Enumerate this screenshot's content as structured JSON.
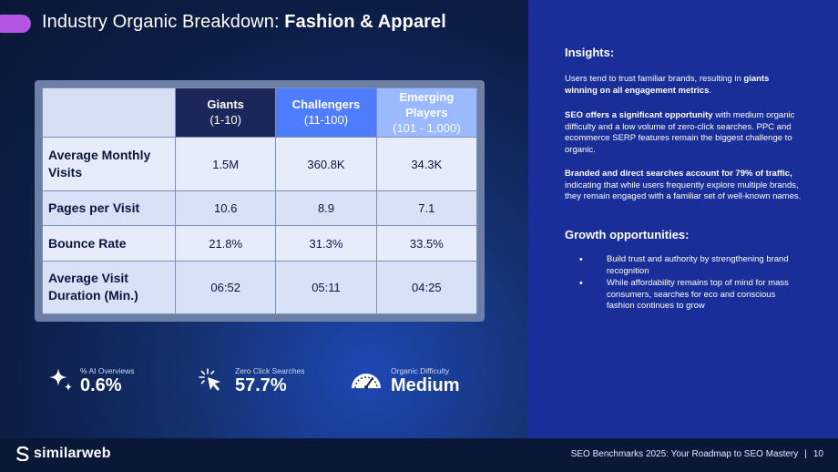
{
  "header": {
    "title_prefix": "Industry Organic Breakdown:",
    "title_bold": "Fashion & Apparel"
  },
  "table": {
    "columns": [
      {
        "name": "Giants",
        "range": "(1-10)"
      },
      {
        "name": "Challengers",
        "range": "(11-100)"
      },
      {
        "name": "Emerging Players",
        "range": "(101 - 1,000)"
      }
    ],
    "rows": [
      {
        "label": "Average Monthly Visits",
        "values": [
          "1.5M",
          "360.8K",
          "34.3K"
        ]
      },
      {
        "label": "Pages per Visit",
        "values": [
          "10.6",
          "8.9",
          "7.1"
        ]
      },
      {
        "label": "Bounce Rate",
        "values": [
          "21.8%",
          "31.3%",
          "33.5%"
        ]
      },
      {
        "label": "Average Visit Duration (Min.)",
        "values": [
          "06:52",
          "05:11",
          "04:25"
        ]
      }
    ]
  },
  "metrics": [
    {
      "label": "% AI Overviews",
      "value": "0.6%",
      "icon": "sparkle-icon"
    },
    {
      "label": "Zero Click Searches",
      "value": "57.7%",
      "icon": "cursor-click-icon"
    },
    {
      "label": "Organic Difficulty",
      "value": "Medium",
      "icon": "gauge-icon"
    }
  ],
  "insights": {
    "heading": "Insights:",
    "p1_plain": "Users tend to trust familiar brands, resulting in ",
    "p1_bold": "giants winning on all engagement metrics",
    "p1_end": ".",
    "p2_bold": "SEO offers a significant opportunity",
    "p2_plain": " with medium organic difficulty and a low volume of zero-click searches. PPC and ecommerce SERP features remain the biggest challenge to organic.",
    "p3_bold": "Branded and direct searches account for 79% of traffic,",
    "p3_plain": " indicating that while users frequently explore multiple brands, they remain engaged with a familiar set of well-known names."
  },
  "growth": {
    "heading": "Growth opportunities:",
    "items": [
      "Build trust and authority by strengthening brand recognition",
      "While affordability remains top of mind for mass consumers, searches for eco and conscious fashion continues to grow"
    ]
  },
  "footer": {
    "brand": "similarweb",
    "caption": "SEO Benchmarks 2025: Your Roadmap to SEO Mastery",
    "separator": "|",
    "page": "10"
  },
  "colors": {
    "accent_pill": "#b455e6",
    "giants_header": "#1c2759",
    "challengers_header": "#4f7dff",
    "emerging_header": "#9bb9ff",
    "right_panel": "#1a2e9a"
  }
}
